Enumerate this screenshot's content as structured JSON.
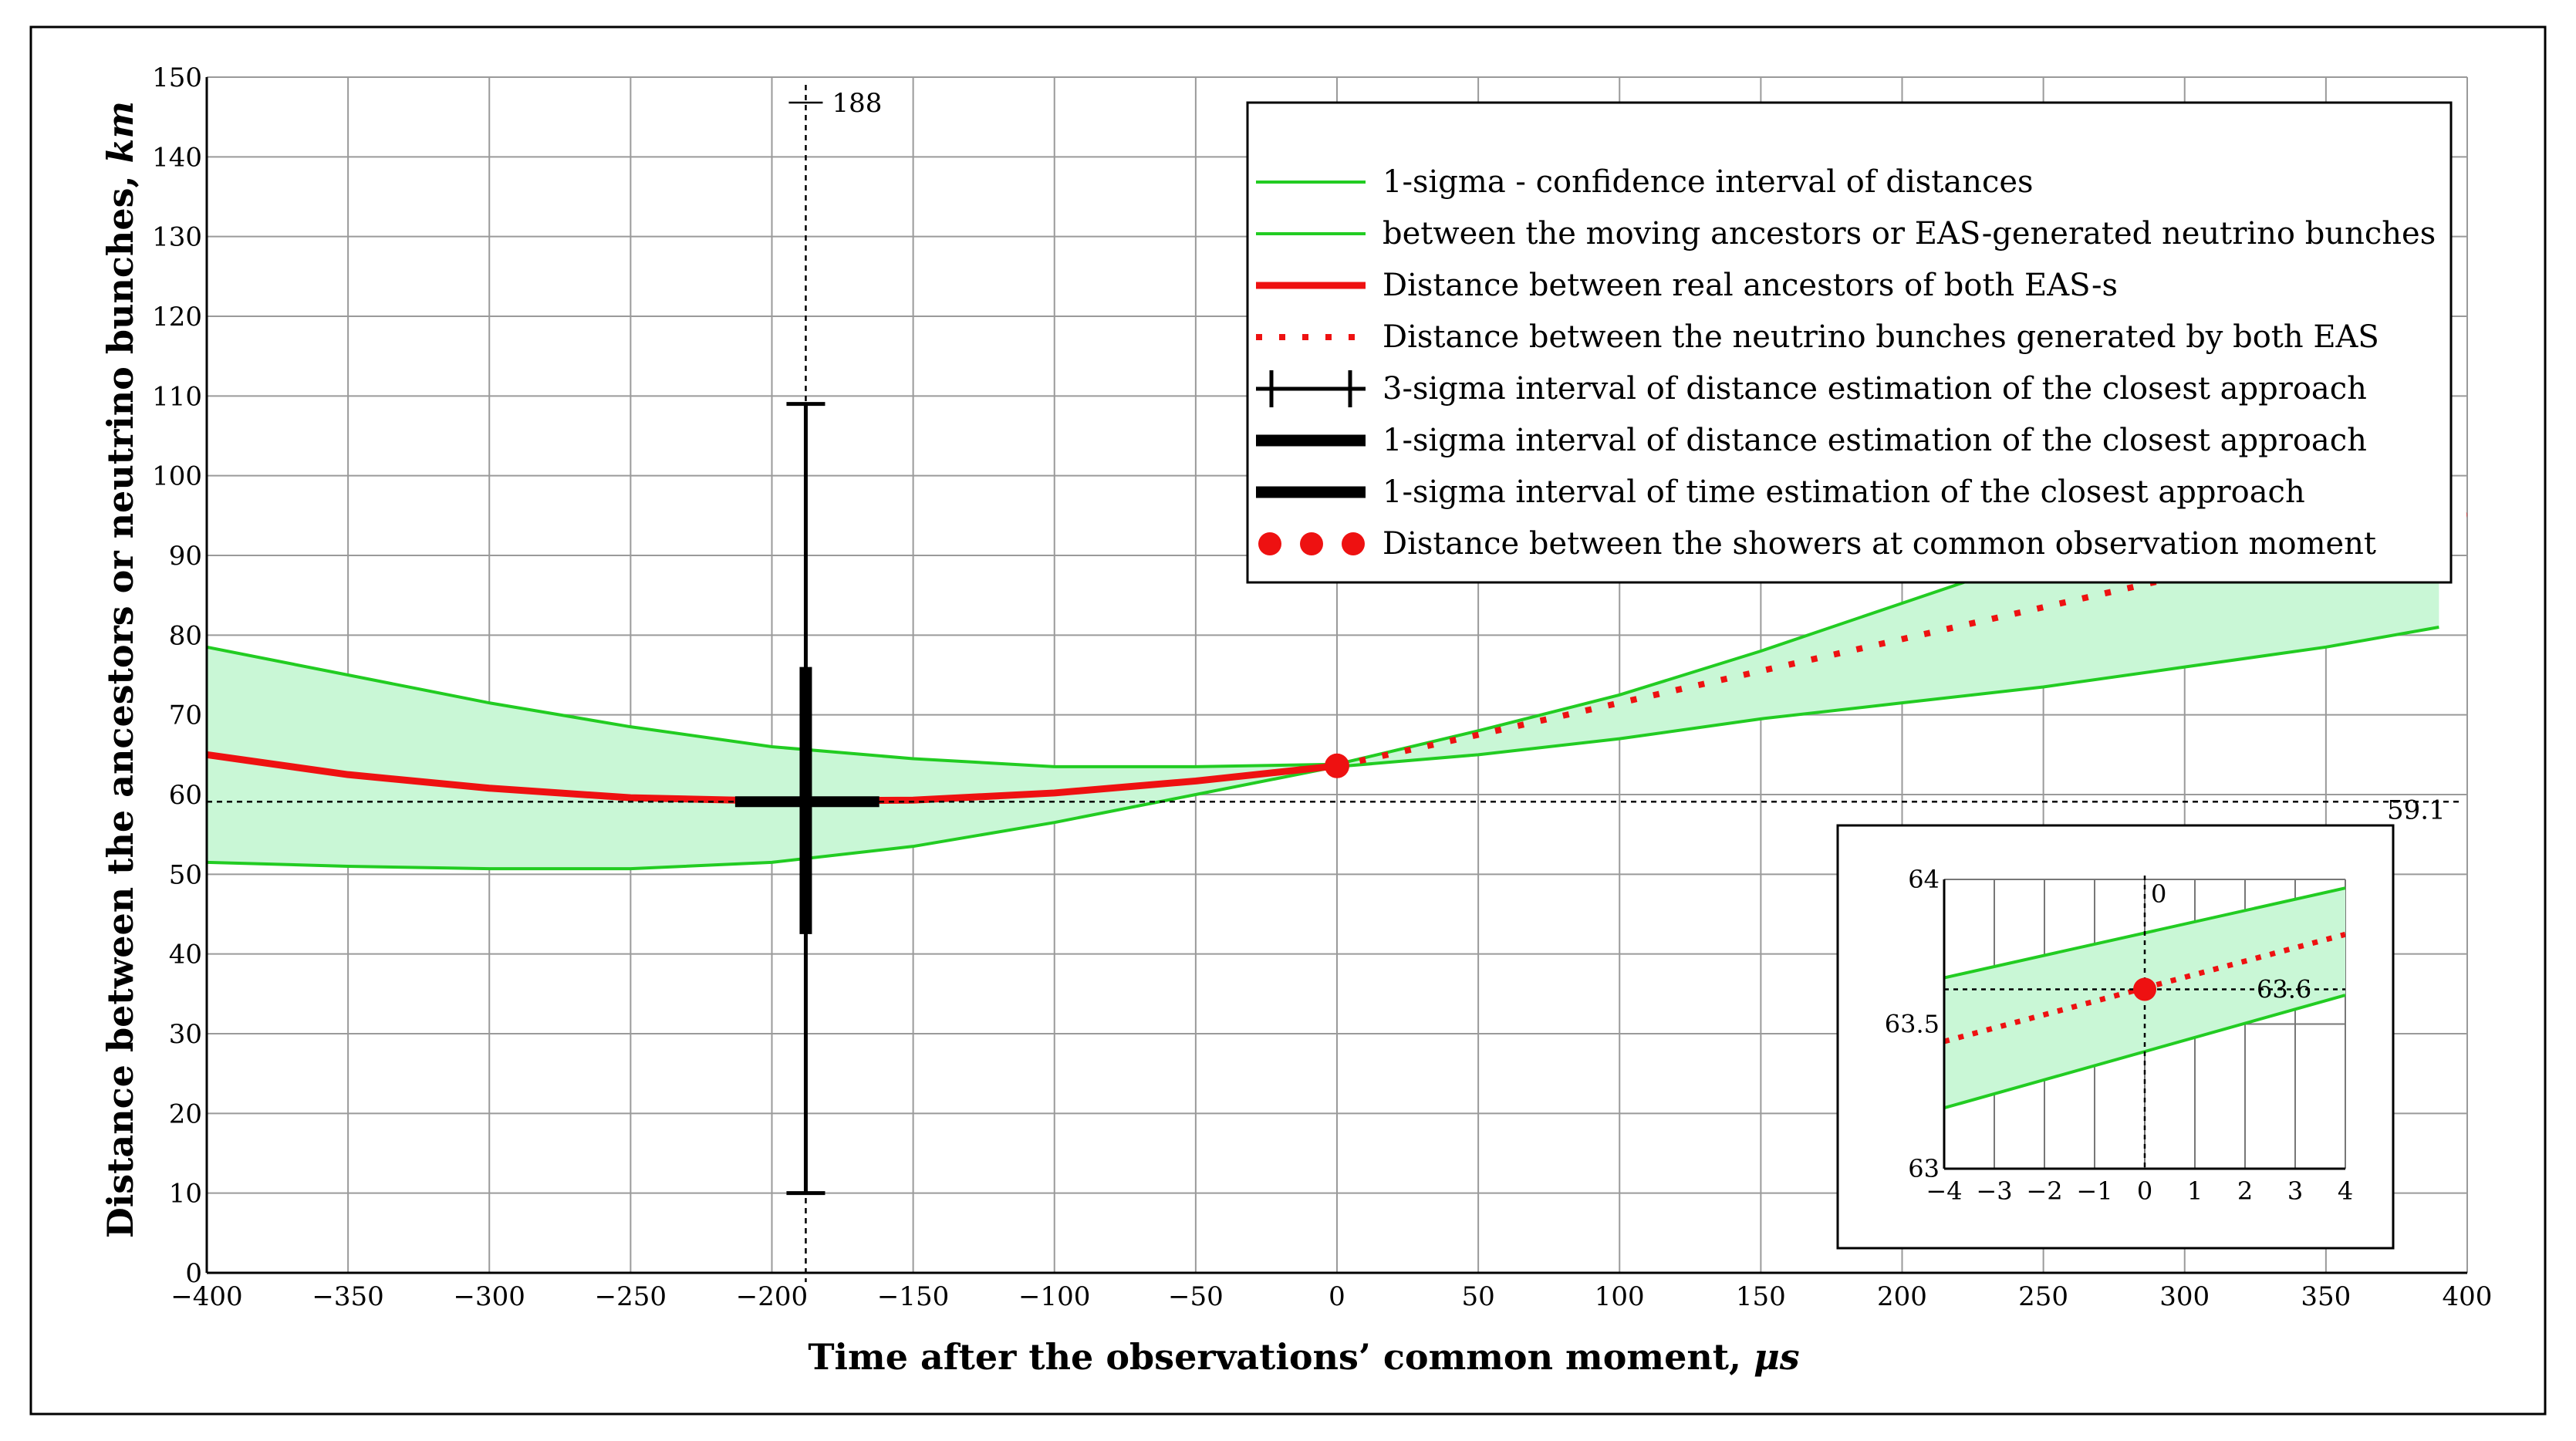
{
  "chart_data": [
    {
      "type": "line",
      "xlabel": "Time after the observations’ common moment, ",
      "xlabel_unit": "μs",
      "ylabel": "Distance between the ancestors or neutrino bunches, ",
      "ylabel_unit": "km",
      "xlim": [
        -400,
        400
      ],
      "ylim": [
        0,
        150
      ],
      "x_ticks": [
        -400,
        -350,
        -300,
        -250,
        -200,
        -150,
        -100,
        -50,
        0,
        50,
        100,
        150,
        200,
        250,
        300,
        350,
        400
      ],
      "x_tick_labels": [
        "−400",
        "−350",
        "−300",
        "−250",
        "−200",
        "−150",
        "−100",
        "−50",
        "0",
        "50",
        "100",
        "150",
        "200",
        "250",
        "300",
        "350",
        "400"
      ],
      "y_ticks": [
        0,
        10,
        20,
        30,
        40,
        50,
        60,
        70,
        80,
        90,
        100,
        110,
        120,
        130,
        140,
        150
      ],
      "y_tick_labels": [
        "0",
        "10",
        "20",
        "30",
        "40",
        "50",
        "60",
        "70",
        "80",
        "90",
        "100",
        "110",
        "120",
        "130",
        "140",
        "150"
      ],
      "grid": true,
      "legend_position": "top-right",
      "colors": {
        "band_fill": "#c9f7d6",
        "band_line": "#22cc22",
        "ancestors": "#ee1111",
        "neutrino": "#ee1111",
        "markers": "#000000"
      },
      "series": [
        {
          "name": "1-sigma - confidence interval of distances",
          "style": "green-line",
          "x": [
            -400,
            -350,
            -300,
            -250,
            -200,
            -150,
            -100,
            -50,
            0,
            50,
            100,
            150,
            200,
            250,
            300,
            350,
            390
          ],
          "values": [
            78.5,
            75,
            71.5,
            68.5,
            66,
            64.5,
            63.5,
            63.5,
            63.8,
            68,
            72.5,
            78,
            84,
            90,
            96,
            102,
            107
          ]
        },
        {
          "name": "between the moving ancestors or EAS-generated neutrino bunches",
          "style": "green-line",
          "x": [
            -400,
            -350,
            -300,
            -250,
            -200,
            -150,
            -100,
            -50,
            0,
            50,
            100,
            150,
            200,
            250,
            300,
            350,
            390
          ],
          "values": [
            51.5,
            51,
            50.7,
            50.7,
            51.5,
            53.5,
            56.5,
            60,
            63.5,
            65,
            67,
            69.5,
            71.5,
            73.5,
            76,
            78.5,
            81
          ]
        },
        {
          "name": "Distance between real ancestors of both EAS-s",
          "style": "red-solid",
          "x": [
            -400,
            -350,
            -300,
            -250,
            -200,
            -150,
            -100,
            -50,
            0
          ],
          "values": [
            65,
            62.5,
            60.8,
            59.6,
            59.2,
            59.3,
            60.2,
            61.7,
            63.6
          ]
        },
        {
          "name": "Distance between the neutrino bunches generated by both EAS",
          "style": "red-dotted",
          "x": [
            0,
            50,
            100,
            150,
            200,
            250,
            300,
            350,
            400
          ],
          "values": [
            63.6,
            67.5,
            71.5,
            75.5,
            79.5,
            83.5,
            87.5,
            91.5,
            95
          ]
        }
      ],
      "error_bars": [
        {
          "name": "3-sigma interval of distance estimation of the closest approach",
          "x": -188,
          "y_range": [
            10,
            109
          ]
        },
        {
          "name": "1-sigma interval of distance estimation of the closest approach",
          "x": -188,
          "y_range": [
            42.5,
            76
          ]
        },
        {
          "name": "1-sigma interval of time estimation of the closest approach",
          "y": 59.1,
          "x_range": [
            -213,
            -162
          ]
        }
      ],
      "points": [
        {
          "name": "Distance between the showers at common observation moment",
          "x": 0,
          "y": 63.6
        }
      ],
      "reference_lines": [
        {
          "orientation": "vertical",
          "x": -188,
          "label": "188"
        },
        {
          "orientation": "horizontal",
          "y": 59.1,
          "label": "59.1"
        }
      ],
      "legend": [
        {
          "symbol": "green-line",
          "label": "1-sigma - confidence interval of distances"
        },
        {
          "symbol": "green-line",
          "label": "between the moving ancestors or EAS-generated neutrino bunches"
        },
        {
          "symbol": "red-solid",
          "label": "Distance between real ancestors of both EAS-s"
        },
        {
          "symbol": "red-dotted",
          "label": "Distance between the neutrino bunches generated by both EAS"
        },
        {
          "symbol": "black-errorbar",
          "label": "3-sigma interval of distance estimation of the closest approach"
        },
        {
          "symbol": "black-thick",
          "label": "1-sigma interval of distance estimation of the closest approach"
        },
        {
          "symbol": "black-thick",
          "label": "1-sigma interval of time estimation of the closest approach"
        },
        {
          "symbol": "red-dots",
          "label": "Distance between the showers at common observation moment"
        }
      ]
    },
    {
      "type": "line",
      "inset": true,
      "xlim": [
        -4,
        4
      ],
      "ylim": [
        63,
        64
      ],
      "x_ticks": [
        -4,
        -3,
        -2,
        -1,
        0,
        1,
        2,
        3,
        4
      ],
      "x_tick_labels": [
        "−4",
        "−3",
        "−2",
        "−1",
        "0",
        "1",
        "2",
        "3",
        "4"
      ],
      "y_ticks": [
        63,
        63.5,
        64
      ],
      "y_tick_labels": [
        "63",
        "63.5",
        "64"
      ],
      "series": [
        {
          "name": "",
          "style": "green-line",
          "x": [
            -4,
            4
          ],
          "values": [
            63.66,
            63.97
          ]
        },
        {
          "name": "",
          "style": "green-line",
          "x": [
            -4,
            4
          ],
          "values": [
            63.21,
            63.6
          ]
        },
        {
          "name": "",
          "style": "red-dotted",
          "x": [
            -4,
            4
          ],
          "values": [
            63.44,
            63.81
          ]
        }
      ],
      "points": [
        {
          "x": 0,
          "y": 63.62
        }
      ],
      "reference_lines": [
        {
          "orientation": "vertical",
          "x": 0,
          "label": "0"
        },
        {
          "orientation": "horizontal",
          "y": 63.62,
          "label": "63.6"
        }
      ]
    }
  ]
}
